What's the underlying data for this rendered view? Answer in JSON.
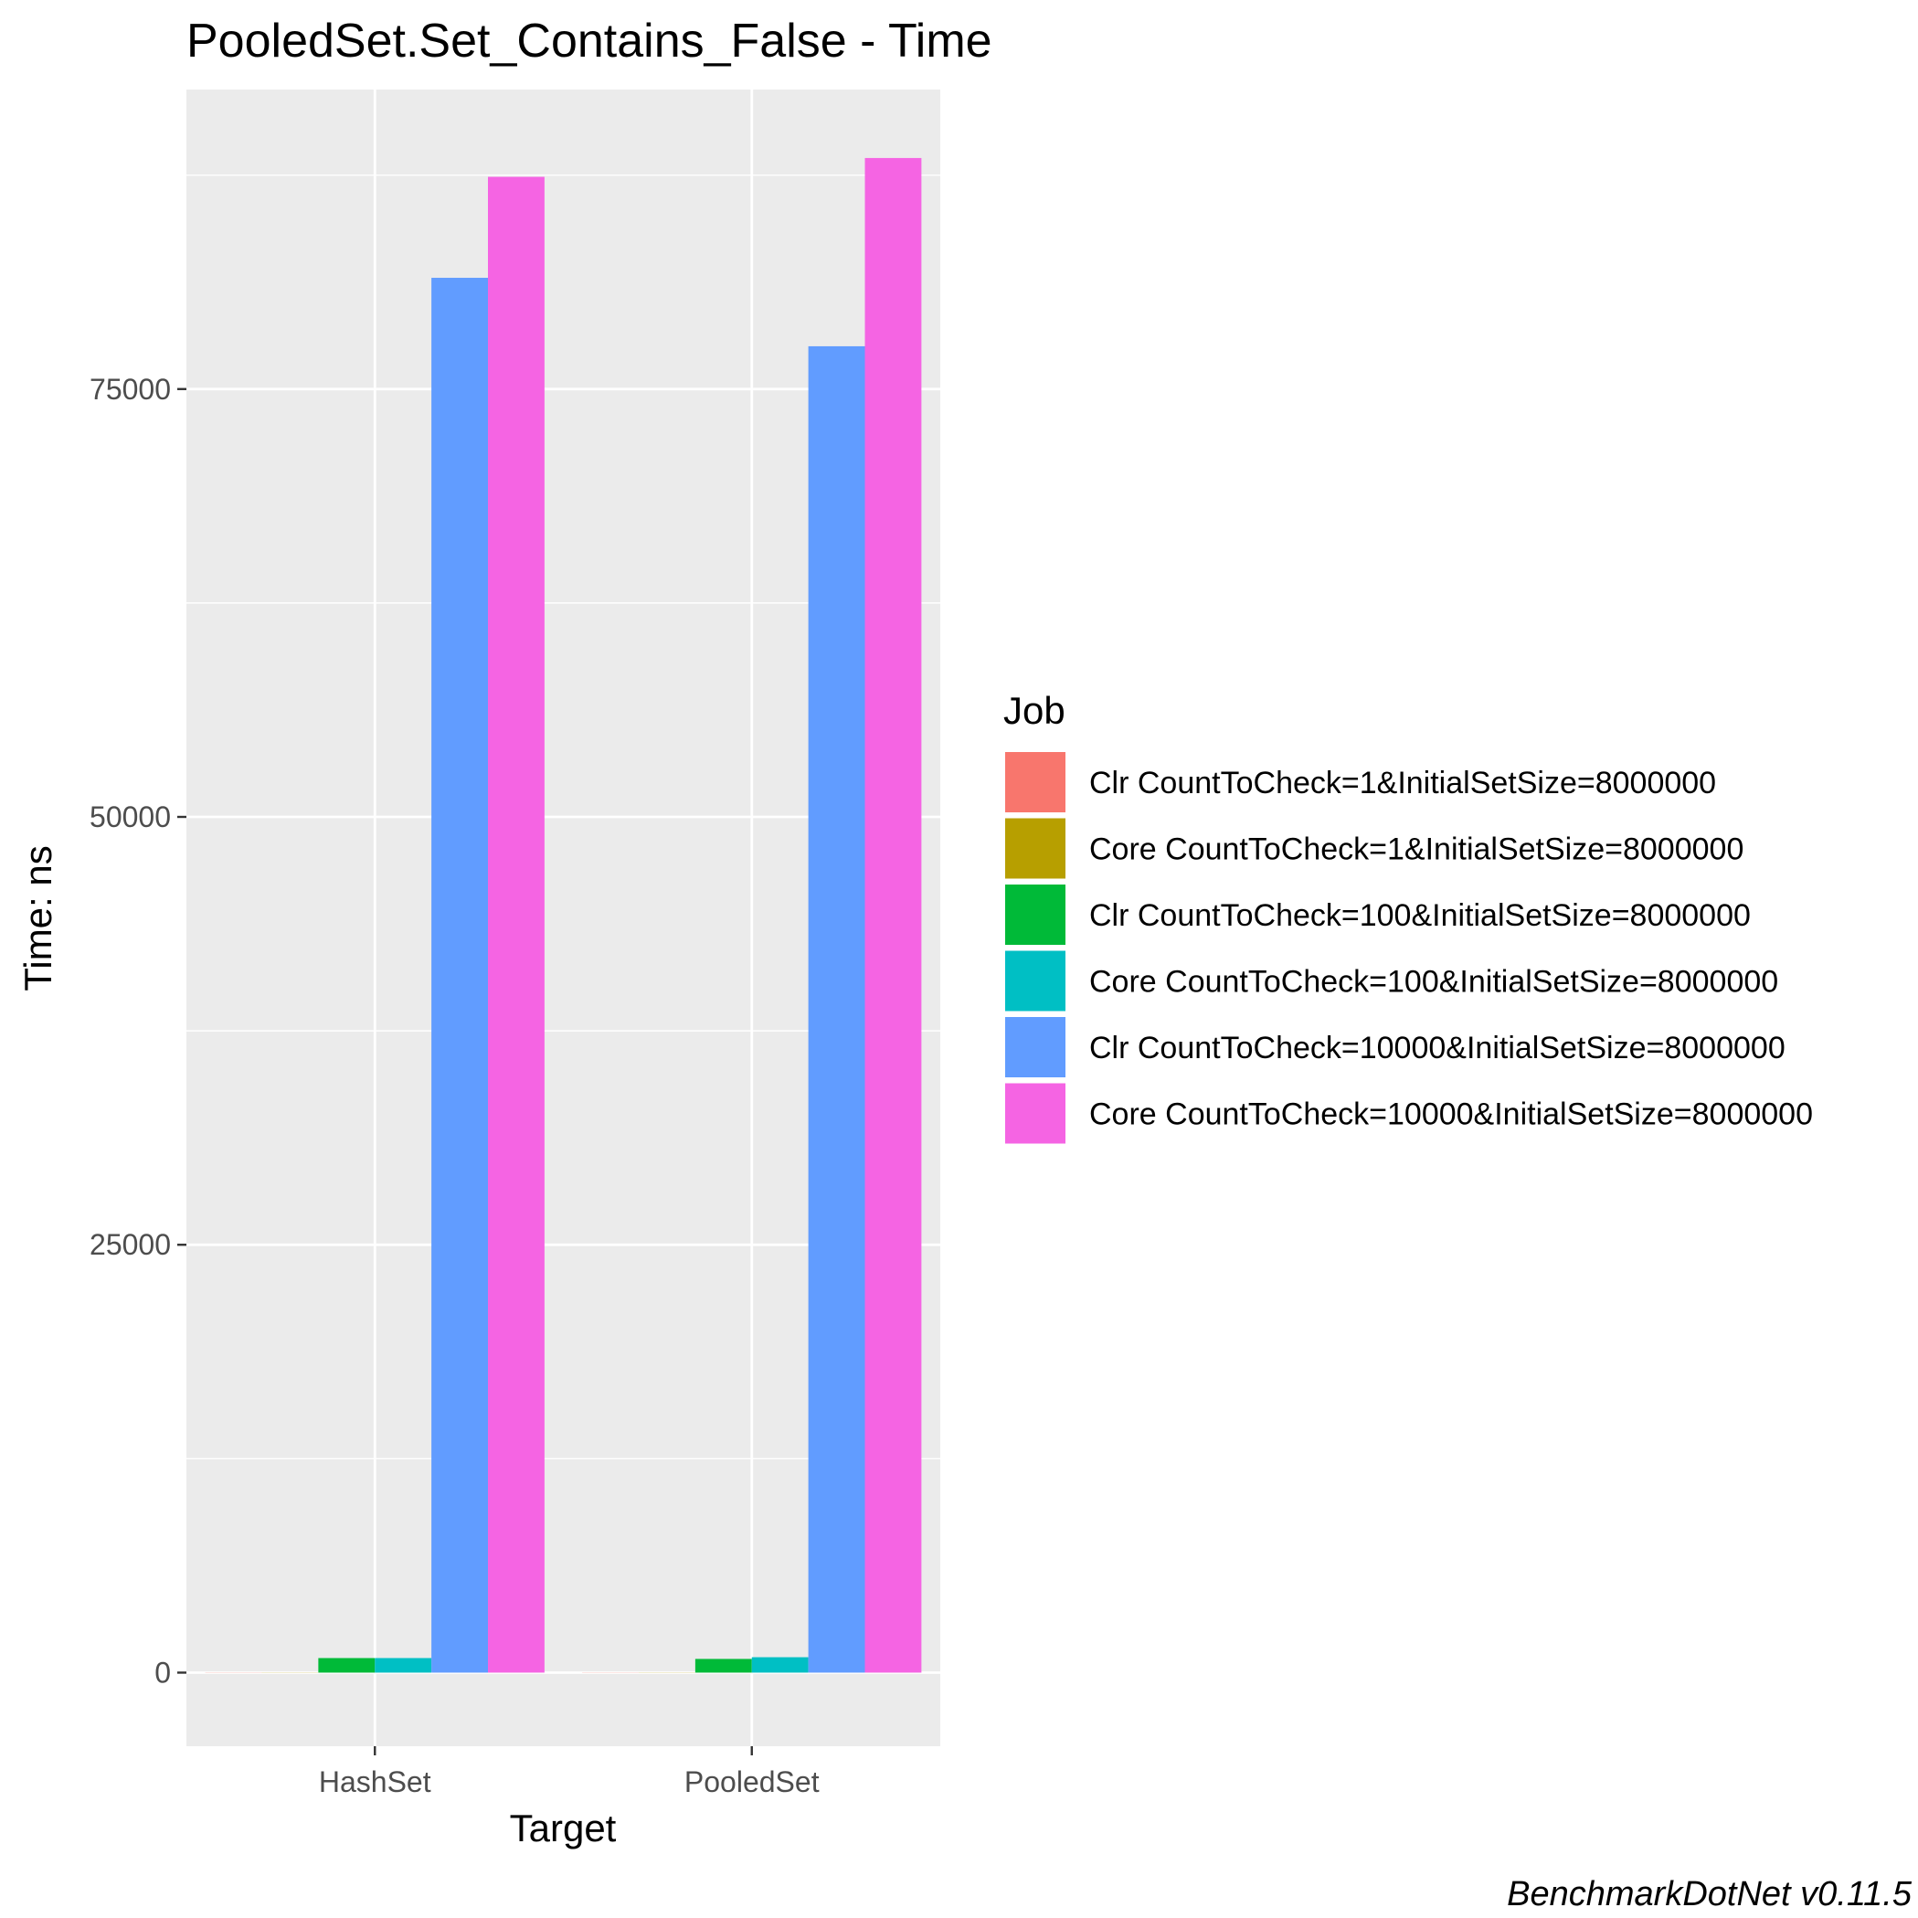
{
  "chart_data": {
    "type": "bar",
    "title": "PooledSet.Set_Contains_False - Time",
    "xlabel": "Target",
    "ylabel": "Time: ns",
    "categories": [
      "HashSet",
      "PooledSet"
    ],
    "ylim": [
      -4300,
      92500
    ],
    "yticks": [
      0,
      25000,
      50000,
      75000
    ],
    "ytick_labels": [
      "0",
      "25000",
      "50000",
      "75000"
    ],
    "grid": true,
    "legend": {
      "title": "Job",
      "position": "right"
    },
    "series": [
      {
        "name": "Clr CountToCheck=1&InitialSetSize=8000000",
        "color": "#F8766D",
        "values": [
          10,
          10
        ]
      },
      {
        "name": "Core CountToCheck=1&InitialSetSize=8000000",
        "color": "#B79F00",
        "values": [
          10,
          10
        ]
      },
      {
        "name": "Clr CountToCheck=100&InitialSetSize=8000000",
        "color": "#00BA38",
        "values": [
          850,
          800
        ]
      },
      {
        "name": "Core CountToCheck=100&InitialSetSize=8000000",
        "color": "#00BFC4",
        "values": [
          850,
          900
        ]
      },
      {
        "name": "Clr CountToCheck=10000&InitialSetSize=8000000",
        "color": "#619CFF",
        "values": [
          81500,
          77500
        ]
      },
      {
        "name": "Core CountToCheck=10000&InitialSetSize=8000000",
        "color": "#F564E3",
        "values": [
          87400,
          88500
        ]
      }
    ],
    "caption": "BenchmarkDotNet v0.11.5"
  }
}
